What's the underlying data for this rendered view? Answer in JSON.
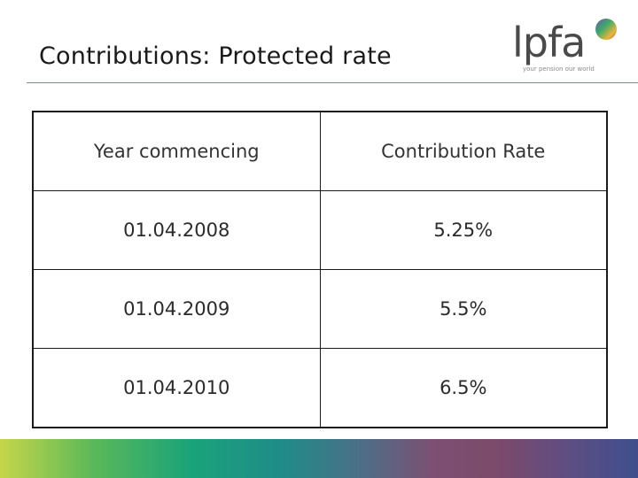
{
  "slide": {
    "title": "Contributions: Protected rate"
  },
  "logo": {
    "wordmark": "lpfa",
    "tagline": "your pension our world",
    "dot_colors": [
      "#e8b63a",
      "#3fa86b",
      "#5a5aa0",
      "#c0504d"
    ]
  },
  "table": {
    "headers": [
      "Year commencing",
      "Contribution Rate"
    ],
    "rows": [
      [
        "01.04.2008",
        "5.25%"
      ],
      [
        "01.04.2009",
        "5.5%"
      ],
      [
        "01.04.2010",
        "6.5%"
      ]
    ]
  },
  "theme": {
    "footer_gradient": [
      "#c6d64a",
      "#1aa37a",
      "#7d4f73",
      "#3f4f8e"
    ]
  }
}
